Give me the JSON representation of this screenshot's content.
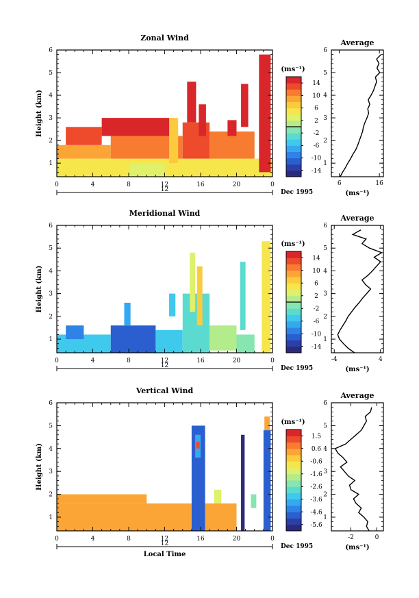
{
  "colors": {
    "scale": [
      "#2b2a7a",
      "#2c3ea8",
      "#2b5fd0",
      "#2e84e6",
      "#35a9f0",
      "#3fc9ec",
      "#5bdbd0",
      "#86e5b0",
      "#b3ec8a",
      "#dff06a",
      "#f6e64c",
      "#fbcb3d",
      "#fba537",
      "#f77b31",
      "#ee4a2c",
      "#d8262a"
    ]
  },
  "chart_data": [
    {
      "type": "heatmap",
      "title": "Zonal Wind",
      "ylabel": "Height (km)",
      "yticks": [
        "1",
        "2",
        "3",
        "4",
        "5",
        "6"
      ],
      "ylim": [
        0.4,
        6
      ],
      "xticks": [
        "0",
        "4",
        "8",
        "12",
        "16",
        "20",
        "0"
      ],
      "xlim": [
        0,
        24
      ],
      "date_label": "12",
      "date_suffix": "Dec 1995",
      "colorbar": {
        "unit": "(ms⁻¹)",
        "ticks": [
          "14",
          "10",
          "6",
          "2",
          "-2",
          "-6",
          "-10",
          "-14"
        ],
        "range": [
          -16,
          16
        ],
        "zero_line": true
      },
      "cells": [
        {
          "x0": 0,
          "x1": 24,
          "y0": 0.4,
          "y1": 1.2,
          "value": 5
        },
        {
          "x0": 0,
          "x1": 6,
          "y0": 1.2,
          "y1": 1.8,
          "value": 9
        },
        {
          "x0": 6,
          "x1": 14,
          "y0": 1.2,
          "y1": 2.2,
          "value": 11
        },
        {
          "x0": 1,
          "x1": 5,
          "y0": 1.8,
          "y1": 2.6,
          "value": 13
        },
        {
          "x0": 5,
          "x1": 13,
          "y0": 2.2,
          "y1": 3.0,
          "value": 15
        },
        {
          "x0": 14,
          "x1": 17,
          "y0": 1.2,
          "y1": 2.8,
          "value": 12
        },
        {
          "x0": 17,
          "x1": 22,
          "y0": 1.2,
          "y1": 2.4,
          "value": 10
        },
        {
          "x0": 8,
          "x1": 12,
          "y0": 0.4,
          "y1": 1.0,
          "value": 2
        },
        {
          "x0": 14.5,
          "x1": 15.5,
          "y0": 2.8,
          "y1": 4.6,
          "value": 15
        },
        {
          "x0": 15.8,
          "x1": 16.6,
          "y0": 2.2,
          "y1": 3.6,
          "value": 14
        },
        {
          "x0": 20.5,
          "x1": 21.3,
          "y0": 2.6,
          "y1": 4.5,
          "value": 15
        },
        {
          "x0": 22.5,
          "x1": 23.8,
          "y0": 0.6,
          "y1": 5.8,
          "value": 15
        },
        {
          "x0": 12.5,
          "x1": 13.5,
          "y0": 1.0,
          "y1": 3.0,
          "value": 7
        },
        {
          "x0": 19,
          "x1": 20,
          "y0": 2.2,
          "y1": 2.9,
          "value": 15
        }
      ]
    },
    {
      "type": "line",
      "title": "Average",
      "x": [
        6.2,
        6.8,
        7.5,
        8.1,
        8.8,
        9.4,
        10.1,
        10.6,
        11.0,
        11.4,
        11.8,
        12.0,
        12.4,
        12.9,
        13.3,
        13.1,
        13.6,
        13.2,
        13.9,
        14.5,
        14.9,
        15.3,
        15.0,
        16.1,
        15.4,
        15.9,
        15.3,
        16.4
      ],
      "y": [
        0.4,
        0.6,
        0.8,
        1.0,
        1.2,
        1.4,
        1.6,
        1.8,
        2.0,
        2.2,
        2.4,
        2.6,
        2.8,
        3.0,
        3.2,
        3.4,
        3.6,
        3.8,
        4.0,
        4.2,
        4.4,
        4.6,
        4.8,
        5.0,
        5.2,
        5.4,
        5.6,
        5.8
      ],
      "xticks": [
        "6",
        "16"
      ],
      "xlim": [
        4,
        17
      ],
      "yticks": [
        "1",
        "2",
        "3",
        "4",
        "5",
        "6"
      ],
      "ylim": [
        0.4,
        6
      ],
      "xlabel": "(ms⁻¹)"
    },
    {
      "type": "heatmap",
      "title": "Meridional Wind",
      "ylabel": "Height (km)",
      "yticks": [
        "1",
        "2",
        "3",
        "4",
        "5",
        "6"
      ],
      "ylim": [
        0.4,
        6
      ],
      "xticks": [
        "0",
        "4",
        "8",
        "12",
        "16",
        "20",
        "0"
      ],
      "xlim": [
        0,
        24
      ],
      "date_label": "12",
      "date_suffix": "Dec 1995",
      "colorbar": {
        "unit": "(ms⁻¹)",
        "ticks": [
          "14",
          "10",
          "6",
          "2",
          "-2",
          "-6",
          "-10",
          "-14"
        ],
        "range": [
          -16,
          16
        ],
        "zero_line": true
      },
      "cells": [
        {
          "x0": 0,
          "x1": 6,
          "y0": 0.4,
          "y1": 1.2,
          "value": -6
        },
        {
          "x0": 6,
          "x1": 11,
          "y0": 0.4,
          "y1": 1.6,
          "value": -11
        },
        {
          "x0": 11,
          "x1": 14,
          "y0": 0.4,
          "y1": 1.4,
          "value": -6
        },
        {
          "x0": 14,
          "x1": 17,
          "y0": 0.4,
          "y1": 3.0,
          "value": -3
        },
        {
          "x0": 14.8,
          "x1": 15.4,
          "y0": 2.2,
          "y1": 4.8,
          "value": 3
        },
        {
          "x0": 15.6,
          "x1": 16.2,
          "y0": 1.6,
          "y1": 4.2,
          "value": 6
        },
        {
          "x0": 17,
          "x1": 20,
          "y0": 0.5,
          "y1": 1.6,
          "value": 1
        },
        {
          "x0": 20,
          "x1": 22,
          "y0": 0.4,
          "y1": 1.2,
          "value": -2
        },
        {
          "x0": 20.4,
          "x1": 21.0,
          "y0": 1.4,
          "y1": 4.4,
          "value": -4
        },
        {
          "x0": 22.8,
          "x1": 23.8,
          "y0": 0.4,
          "y1": 5.3,
          "value": 5
        },
        {
          "x0": 1,
          "x1": 3,
          "y0": 1.0,
          "y1": 1.6,
          "value": -9
        },
        {
          "x0": 7.5,
          "x1": 8.2,
          "y0": 1.6,
          "y1": 2.6,
          "value": -7
        },
        {
          "x0": 12.5,
          "x1": 13.2,
          "y0": 2.0,
          "y1": 3.0,
          "value": -5
        }
      ]
    },
    {
      "type": "line",
      "title": "Average",
      "x": [
        -0.5,
        -1.6,
        -2.4,
        -3.1,
        -3.4,
        -3.0,
        -2.5,
        -2.0,
        -1.6,
        -1.0,
        -0.4,
        0.3,
        0.9,
        1.6,
        2.3,
        1.4,
        0.8,
        1.8,
        2.6,
        3.3,
        4.0,
        2.9,
        4.2,
        2.1,
        0.8,
        1.5,
        -0.8,
        0.6
      ],
      "y": [
        0.4,
        0.6,
        0.8,
        1.0,
        1.2,
        1.4,
        1.6,
        1.8,
        2.0,
        2.2,
        2.4,
        2.6,
        2.8,
        3.0,
        3.2,
        3.4,
        3.6,
        3.8,
        4.0,
        4.2,
        4.4,
        4.6,
        4.8,
        5.0,
        5.2,
        5.4,
        5.6,
        5.8
      ],
      "xticks": [
        "-4",
        "4"
      ],
      "xlim": [
        -4.5,
        4.5
      ],
      "yticks": [
        "1",
        "2",
        "3",
        "4",
        "5",
        "6"
      ],
      "ylim": [
        0.4,
        6
      ],
      "xlabel": "(ms⁻¹)"
    },
    {
      "type": "heatmap",
      "title": "Vertical Wind",
      "ylabel": "Height (km)",
      "yticks": [
        "1",
        "2",
        "3",
        "4",
        "5",
        "6"
      ],
      "ylim": [
        0.4,
        6
      ],
      "xticks": [
        "0",
        "4",
        "8",
        "12",
        "16",
        "20",
        "0"
      ],
      "xlim": [
        0,
        24
      ],
      "date_label": "12",
      "date_suffix": "Dec 1995",
      "xlabel": "Local Time",
      "colorbar": {
        "unit": "(ms⁻¹)",
        "ticks": [
          "1.5",
          "0.6",
          "-0.6",
          "-1.6",
          "-2.6",
          "-3.6",
          "-4.6",
          "-5.6"
        ],
        "range": [
          -6,
          2
        ],
        "zero_line": false
      },
      "cells": [
        {
          "x0": 0,
          "x1": 15,
          "y0": 0.4,
          "y1": 1.6,
          "value": 0.2
        },
        {
          "x0": 0,
          "x1": 10,
          "y0": 1.6,
          "y1": 2.0,
          "value": 0.3
        },
        {
          "x0": 15,
          "x1": 16.5,
          "y0": 0.4,
          "y1": 5.0,
          "value": -5.0
        },
        {
          "x0": 15.4,
          "x1": 16.0,
          "y0": 3.6,
          "y1": 4.6,
          "value": -3.8
        },
        {
          "x0": 15.5,
          "x1": 15.9,
          "y0": 4.0,
          "y1": 4.3,
          "value": 1.2
        },
        {
          "x0": 16.5,
          "x1": 20,
          "y0": 0.4,
          "y1": 1.6,
          "value": 0.2
        },
        {
          "x0": 20.5,
          "x1": 20.9,
          "y0": 0.4,
          "y1": 4.6,
          "value": -5.8
        },
        {
          "x0": 23.0,
          "x1": 23.8,
          "y0": 0.4,
          "y1": 4.8,
          "value": -4.6
        },
        {
          "x0": 23.1,
          "x1": 23.7,
          "y0": 4.8,
          "y1": 5.4,
          "value": 0.4
        },
        {
          "x0": 17.5,
          "x1": 18.3,
          "y0": 1.6,
          "y1": 2.2,
          "value": -1.2
        },
        {
          "x0": 21.6,
          "x1": 22.2,
          "y0": 1.4,
          "y1": 2.0,
          "value": -2.4
        }
      ]
    },
    {
      "type": "line",
      "title": "Average",
      "x": [
        -0.6,
        -0.8,
        -0.7,
        -1.0,
        -1.4,
        -1.2,
        -1.6,
        -1.8,
        -1.4,
        -2.0,
        -2.1,
        -1.7,
        -2.2,
        -2.5,
        -2.8,
        -2.3,
        -2.6,
        -3.0,
        -3.2,
        -2.4,
        -2.0,
        -1.6,
        -1.2,
        -1.0,
        -0.8,
        -0.9,
        -0.5,
        -0.4
      ],
      "y": [
        0.4,
        0.6,
        0.8,
        1.0,
        1.2,
        1.4,
        1.6,
        1.8,
        2.0,
        2.2,
        2.4,
        2.6,
        2.8,
        3.0,
        3.2,
        3.4,
        3.6,
        3.8,
        4.0,
        4.2,
        4.4,
        4.6,
        4.8,
        5.0,
        5.2,
        5.4,
        5.6,
        5.8
      ],
      "xticks": [
        "-2",
        "0"
      ],
      "xlim": [
        -3.5,
        0.5
      ],
      "yticks": [
        "1",
        "2",
        "3",
        "4",
        "5",
        "6"
      ],
      "ylim": [
        0.4,
        6
      ],
      "xlabel": "(ms⁻¹)"
    }
  ]
}
